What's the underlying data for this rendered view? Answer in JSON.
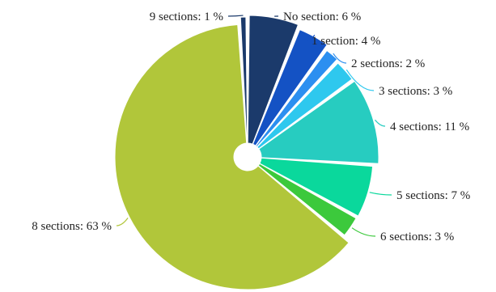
{
  "chart_data": {
    "type": "pie",
    "title": "",
    "unit": "%",
    "slices": [
      {
        "label": "No section",
        "value": 6,
        "display": "No section: 6 %",
        "color": "#1b3a6b"
      },
      {
        "label": "1 section",
        "value": 4,
        "display": "1 section: 4 %",
        "color": "#1452c4"
      },
      {
        "label": "2 sections",
        "value": 2,
        "display": "2 sections: 2 %",
        "color": "#2c8ff0"
      },
      {
        "label": "3 sections",
        "value": 3,
        "display": "3 sections: 3 %",
        "color": "#2ec8ee"
      },
      {
        "label": "4 sections",
        "value": 11,
        "display": "4 sections: 11 %",
        "color": "#27ccc0"
      },
      {
        "label": "5 sections",
        "value": 7,
        "display": "5 sections: 7 %",
        "color": "#0ad89c"
      },
      {
        "label": "6 sections",
        "value": 3,
        "display": "6 sections: 3 %",
        "color": "#3cc93c"
      },
      {
        "label": "8 sections",
        "value": 63,
        "display": "8 sections: 63 %",
        "color": "#b1c63a"
      },
      {
        "label": "9 sections",
        "value": 1,
        "display": "9 sections: 1 %",
        "color": "#1b3a6b"
      }
    ]
  }
}
